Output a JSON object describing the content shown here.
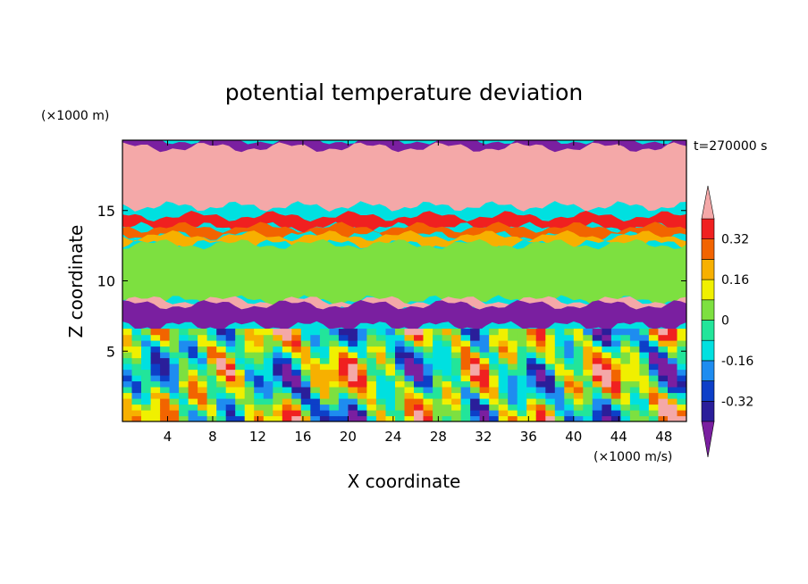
{
  "chart_data": {
    "type": "heatmap",
    "title": "potential temperature deviation",
    "xlabel": "X coordinate",
    "ylabel": "Z coordinate",
    "x_unit_label": "(×1000 m/s)",
    "y_unit_label": "(×1000 m)",
    "time_label": "t=270000 s",
    "xlim": [
      0,
      50
    ],
    "ylim": [
      0,
      20
    ],
    "x_ticks": [
      4,
      8,
      12,
      16,
      20,
      24,
      28,
      32,
      36,
      40,
      44,
      48
    ],
    "y_ticks": [
      5,
      10,
      15
    ],
    "colorbar": {
      "levels": [
        -0.4,
        -0.32,
        -0.24,
        -0.16,
        -0.08,
        0,
        0.08,
        0.16,
        0.24,
        0.32,
        0.4
      ],
      "colors": [
        "#7a1fa0",
        "#2a1e9a",
        "#0d3fc8",
        "#1e8cf0",
        "#00e0e0",
        "#22e59a",
        "#7de040",
        "#f0f000",
        "#f7b000",
        "#f26400",
        "#f02020",
        "#f4a8a8"
      ],
      "labels": [
        "0.32",
        "0.16",
        "0",
        "-0.16",
        "-0.32"
      ],
      "label_values": [
        0.32,
        0.16,
        0,
        -0.16,
        -0.32
      ],
      "extend": "both"
    },
    "field_layers": [
      {
        "name": "upper-purple",
        "value": -0.45,
        "z_range": [
          16.3,
          20
        ]
      },
      {
        "name": "upper-pink",
        "value": 0.45,
        "z_range": [
          15.3,
          19.5
        ]
      },
      {
        "name": "red-band",
        "value": 0.36,
        "z_range": [
          13.8,
          14.6
        ]
      },
      {
        "name": "orange-band",
        "value": 0.28,
        "z_range": [
          13.2,
          13.8
        ]
      },
      {
        "name": "yellow-band",
        "value": 0.2,
        "z_range": [
          12.6,
          13.2
        ]
      },
      {
        "name": "green-band",
        "value": 0.04,
        "z_range": [
          8.6,
          12.6
        ]
      },
      {
        "name": "pink-layer",
        "value": 0.45,
        "z_range": [
          7.8,
          8.6
        ]
      },
      {
        "name": "lower-purple",
        "value": -0.45,
        "z_range": [
          6.8,
          8.3
        ]
      },
      {
        "name": "lower-field",
        "value": -0.1,
        "z_range": [
          0,
          7
        ]
      }
    ]
  }
}
